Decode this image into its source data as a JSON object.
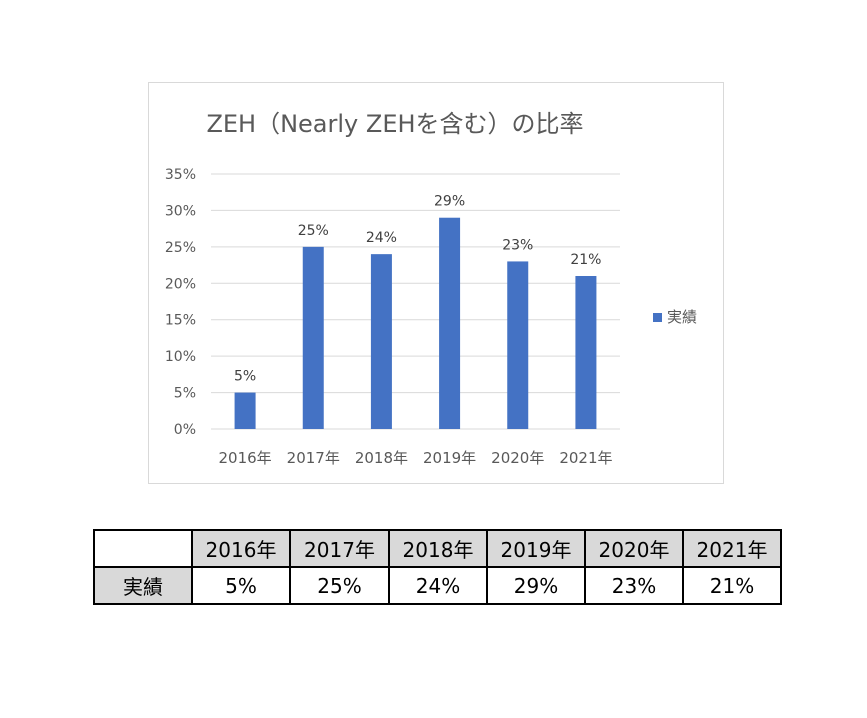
{
  "chart_data": {
    "type": "bar",
    "title": "ZEH（Nearly ZEHを含む）の比率",
    "categories": [
      "2016年",
      "2017年",
      "2018年",
      "2019年",
      "2020年",
      "2021年"
    ],
    "series": [
      {
        "name": "実績",
        "values": [
          5,
          25,
          24,
          29,
          23,
          21
        ],
        "data_labels": [
          "5%",
          "25%",
          "24%",
          "29%",
          "23%",
          "21%"
        ],
        "color": "#4472c4"
      }
    ],
    "ylim": [
      0,
      35
    ],
    "yticks": [
      0,
      5,
      10,
      15,
      20,
      25,
      30,
      35
    ],
    "ytick_labels": [
      "0%",
      "5%",
      "10%",
      "15%",
      "20%",
      "25%",
      "30%",
      "35%"
    ],
    "grid": true,
    "legend_position": "right"
  },
  "table": {
    "header": [
      "",
      "2016年",
      "2017年",
      "2018年",
      "2019年",
      "2020年",
      "2021年"
    ],
    "row_label": "実績",
    "row_values": [
      "5%",
      "25%",
      "24%",
      "29%",
      "23%",
      "21%"
    ]
  },
  "colors": {
    "bar": "#4472c4",
    "grid": "#d9d9d9",
    "axis_text": "#595959",
    "table_shade": "#d9d9d9"
  }
}
